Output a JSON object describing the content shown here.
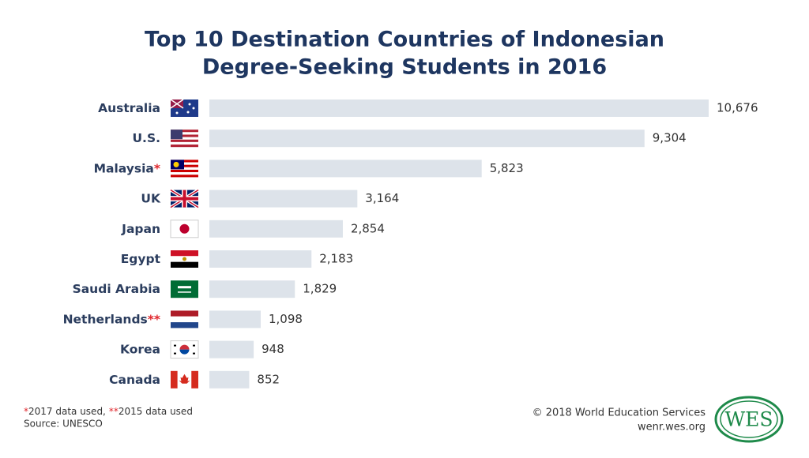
{
  "chart_data": {
    "type": "bar",
    "orientation": "horizontal",
    "title": [
      "Top 10 Destination Countries of Indonesian",
      "Degree-Seeking Students in 2016"
    ],
    "categories": [
      "Australia",
      "U.S.",
      "Malaysia",
      "UK",
      "Japan",
      "Egypt",
      "Saudi Arabia",
      "Netherlands",
      "Korea",
      "Canada"
    ],
    "category_marks": [
      null,
      null,
      "*",
      null,
      null,
      null,
      null,
      "**",
      null,
      null
    ],
    "values": [
      10676,
      9304,
      5823,
      3164,
      2854,
      2183,
      1829,
      1098,
      948,
      852
    ],
    "value_labels": [
      "10,676",
      "9,304",
      "5,823",
      "3,164",
      "2,854",
      "2,183",
      "1,829",
      "1,098",
      "948",
      "852"
    ],
    "color": "#dde3ea",
    "footnotes": [
      {
        "mark": "*",
        "text": "2017 data used,"
      },
      {
        "mark": "**",
        "text": "2015 data used"
      }
    ],
    "source": "Source: UNESCO",
    "copyright": "© 2018 World Education Services",
    "website": "wenr.wes.org",
    "logo": "WES"
  }
}
